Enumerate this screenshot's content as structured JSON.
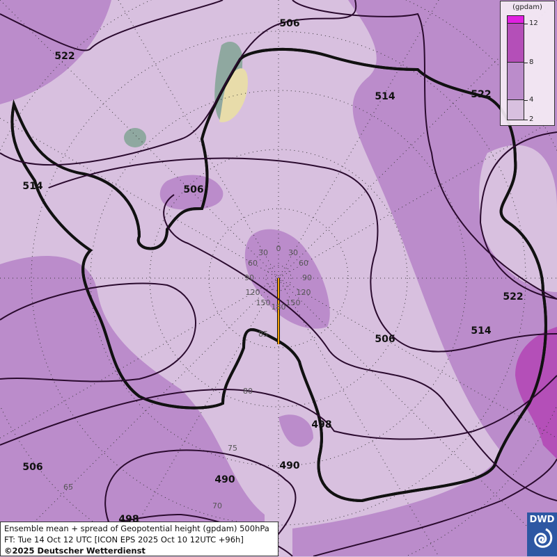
{
  "legend": {
    "unit": "(gpdam)",
    "ticks": [
      "12",
      "8",
      "4",
      "2"
    ],
    "colors": {
      "above_12": "#e020e0",
      "8_12": "#b44fb8",
      "4_8": "#bb8ccb",
      "2_4": "#d8c0df"
    }
  },
  "contour_labels": [
    "522",
    "506",
    "514",
    "522",
    "514",
    "506",
    "522",
    "514",
    "506",
    "498",
    "490",
    "490",
    "506",
    "498"
  ],
  "grid_labels": {
    "longitudes": [
      "0",
      "30",
      "30",
      "60",
      "60",
      "90",
      "90",
      "120",
      "120",
      "150",
      "150",
      "180"
    ],
    "latitudes": [
      "85",
      "80",
      "75",
      "70",
      "65"
    ]
  },
  "caption": {
    "line1": "Ensemble mean + spread of Geopotential height (gpdam) 500hPa",
    "line2": "FT: Tue 14 Oct 12 UTC [ICON EPS 2025 Oct 10 12UTC +96h]",
    "line3": "©2025 Deutscher Wetterdienst"
  },
  "logo": {
    "text": "DWD"
  },
  "colors": {
    "contour": "#2a0a2e",
    "coastline": "#f5a000"
  }
}
